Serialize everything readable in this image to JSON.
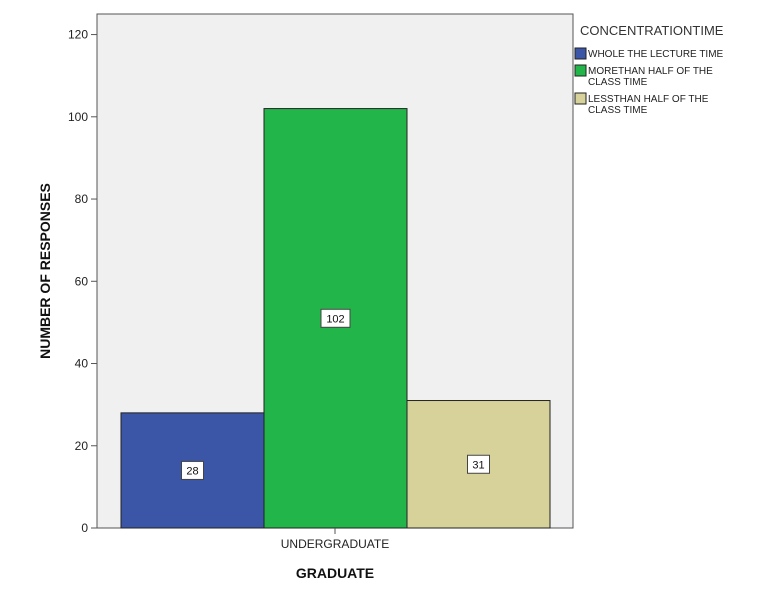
{
  "chart_data": {
    "type": "bar",
    "categories": [
      "UNDERGRADUATE"
    ],
    "series": [
      {
        "name": "WHOLE THE LECTURE TIME",
        "values": [
          28
        ],
        "color": "#3b55a7"
      },
      {
        "name": "MORETHAN HALF OF THE CLASS TIME",
        "values": [
          102
        ],
        "color": "#22b64a"
      },
      {
        "name": "LESSTHAN HALF OF THE CLASS TIME",
        "values": [
          31
        ],
        "color": "#d7d19a"
      }
    ],
    "title": "",
    "xlabel": "GRADUATE",
    "ylabel": "NUMBER OF RESPONSES",
    "ylim": [
      0,
      125
    ],
    "yticks": [
      0,
      20,
      40,
      60,
      80,
      100,
      120
    ],
    "legend_title": "CONCENTRATIONTIME",
    "legend_entries": [
      [
        "WHOLE THE LECTURE TIME"
      ],
      [
        "MORETHAN HALF OF THE",
        "CLASS TIME"
      ],
      [
        "LESSTHAN HALF OF THE",
        "CLASS TIME"
      ]
    ],
    "legend_position": "right",
    "grid": false,
    "plot_background": "#f0f0f0",
    "data_labels": [
      "28",
      "102",
      "31"
    ]
  }
}
